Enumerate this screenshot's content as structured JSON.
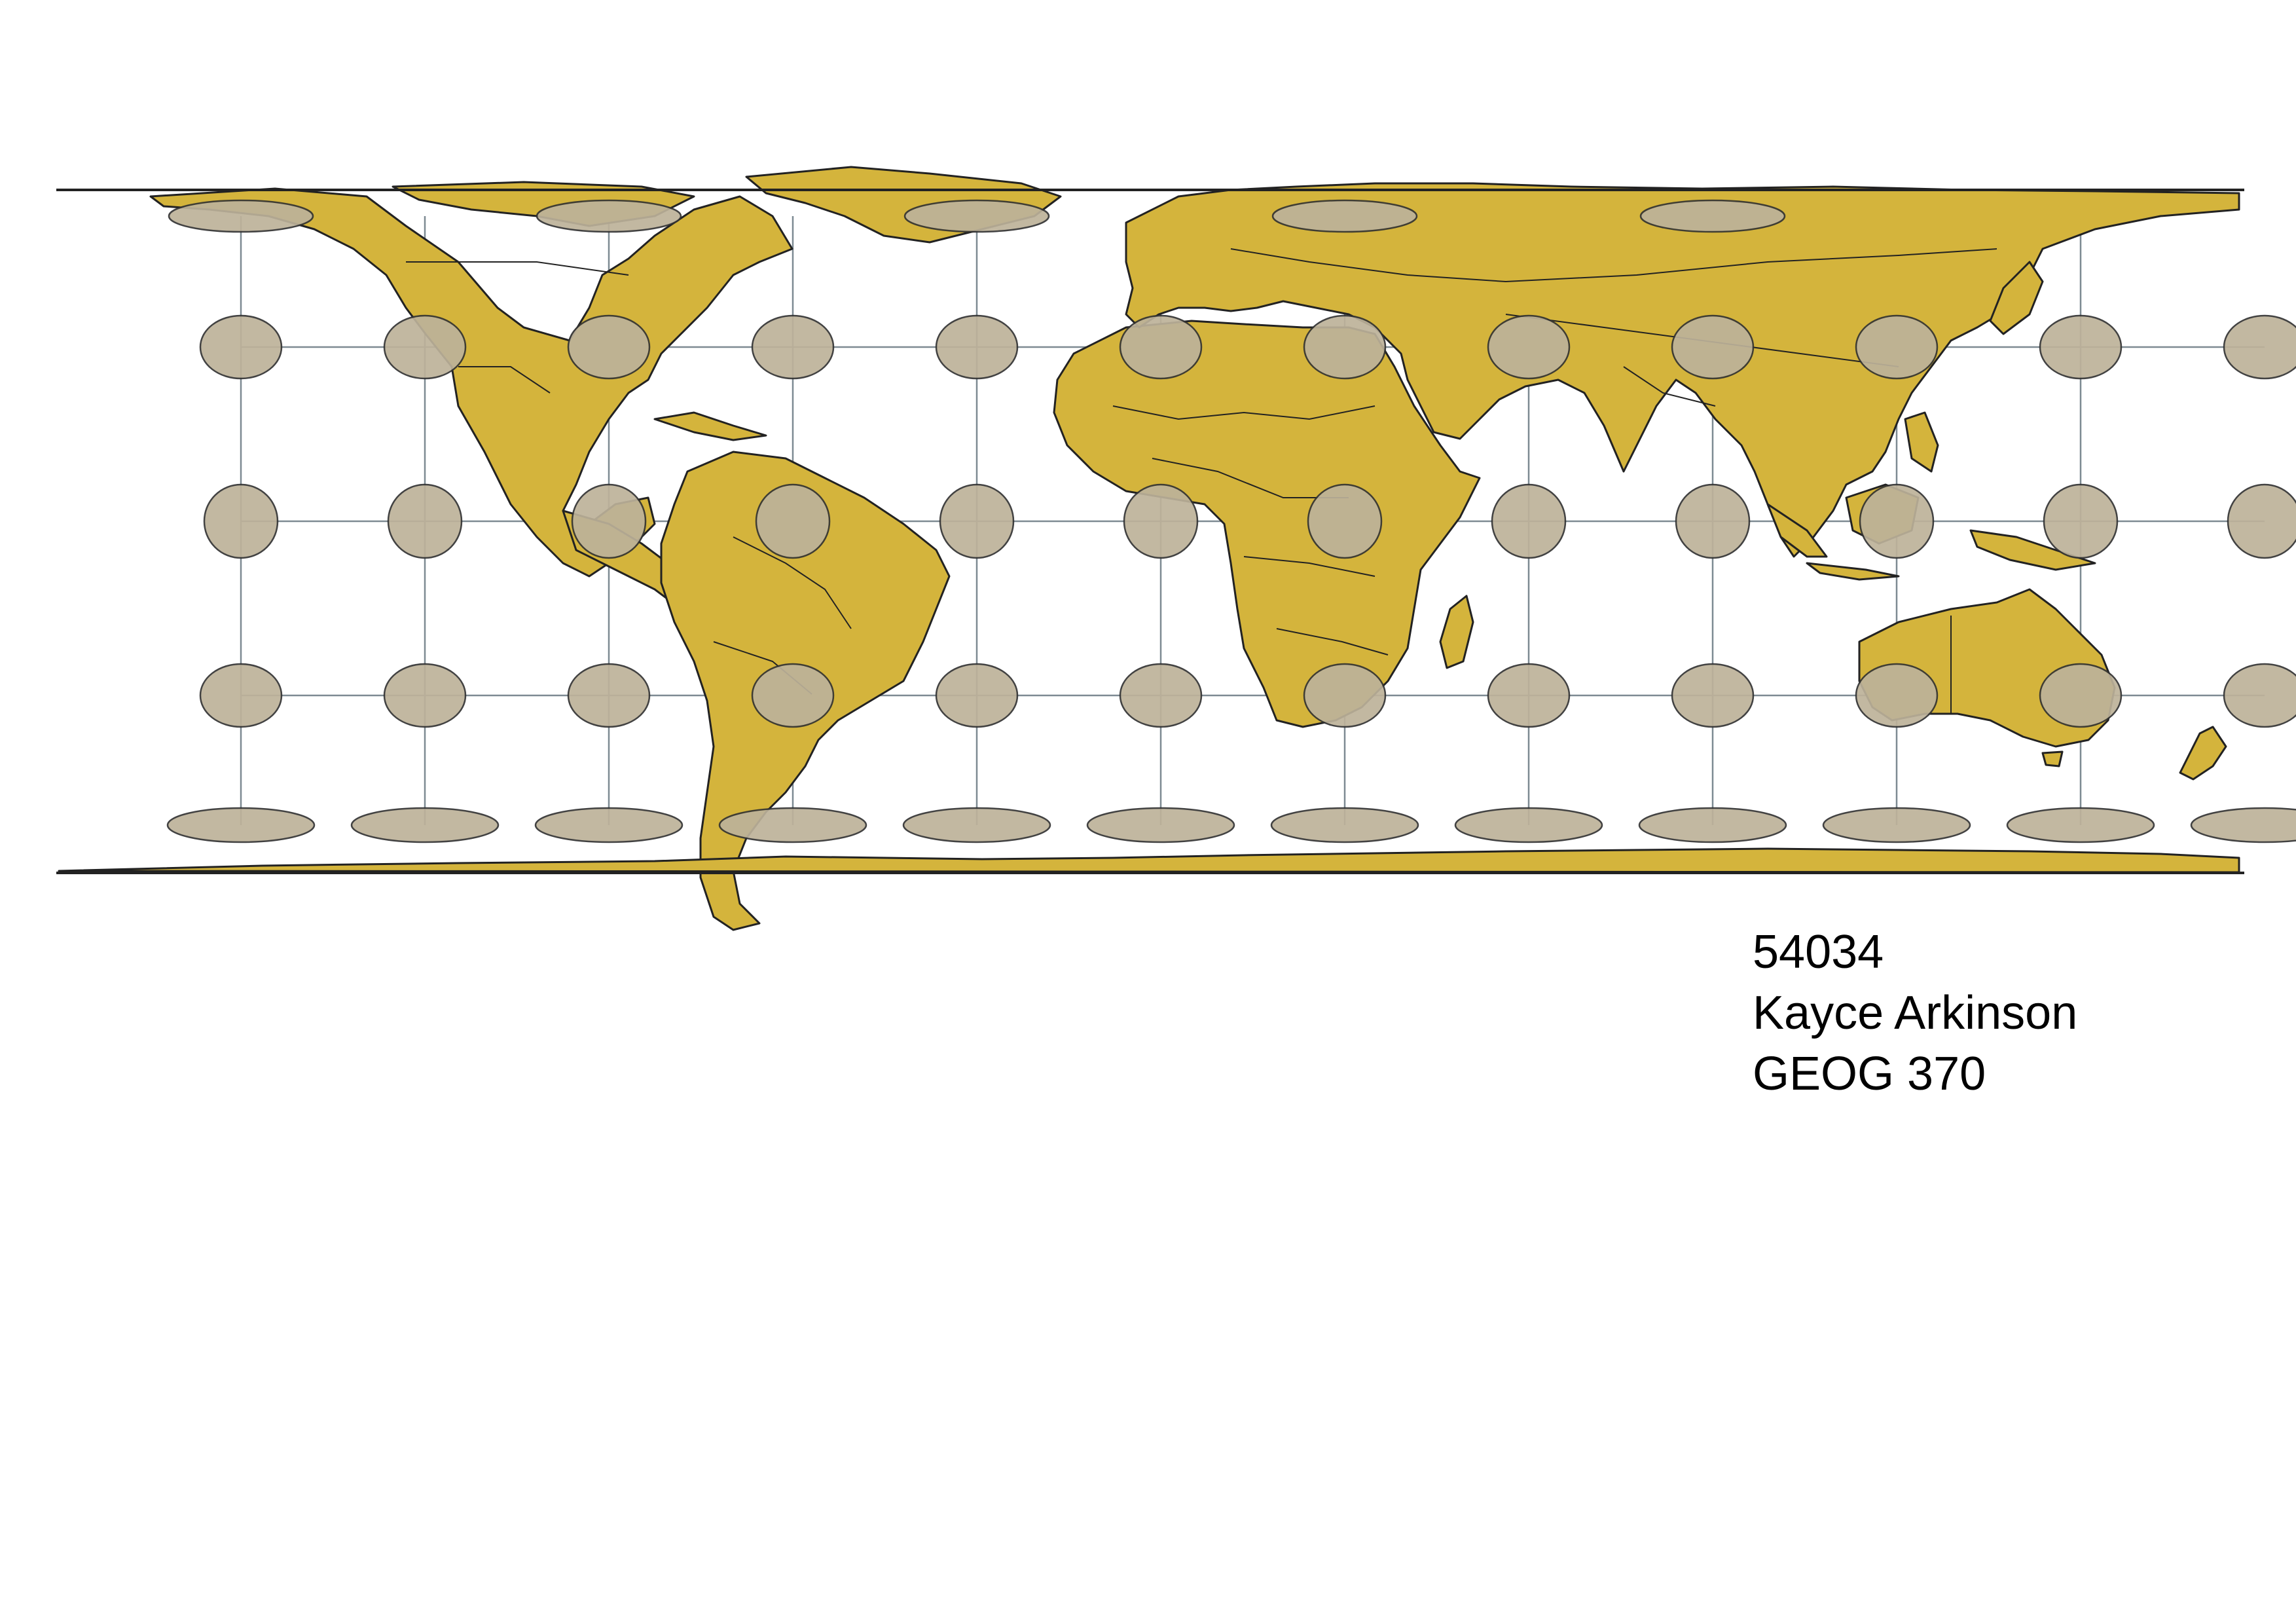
{
  "map": {
    "projection_id": "54034",
    "colors": {
      "land": "#d4b43c",
      "indicatrix": "#bdb29a",
      "graticule": "#7d8a92",
      "outline": "#222222",
      "background": "#ffffff"
    },
    "indicatrix_rows": 5,
    "indicatrix_cols": 12
  },
  "caption": {
    "line1": "54034",
    "line2": "Kayce Arkinson",
    "line3": "GEOG 370"
  }
}
